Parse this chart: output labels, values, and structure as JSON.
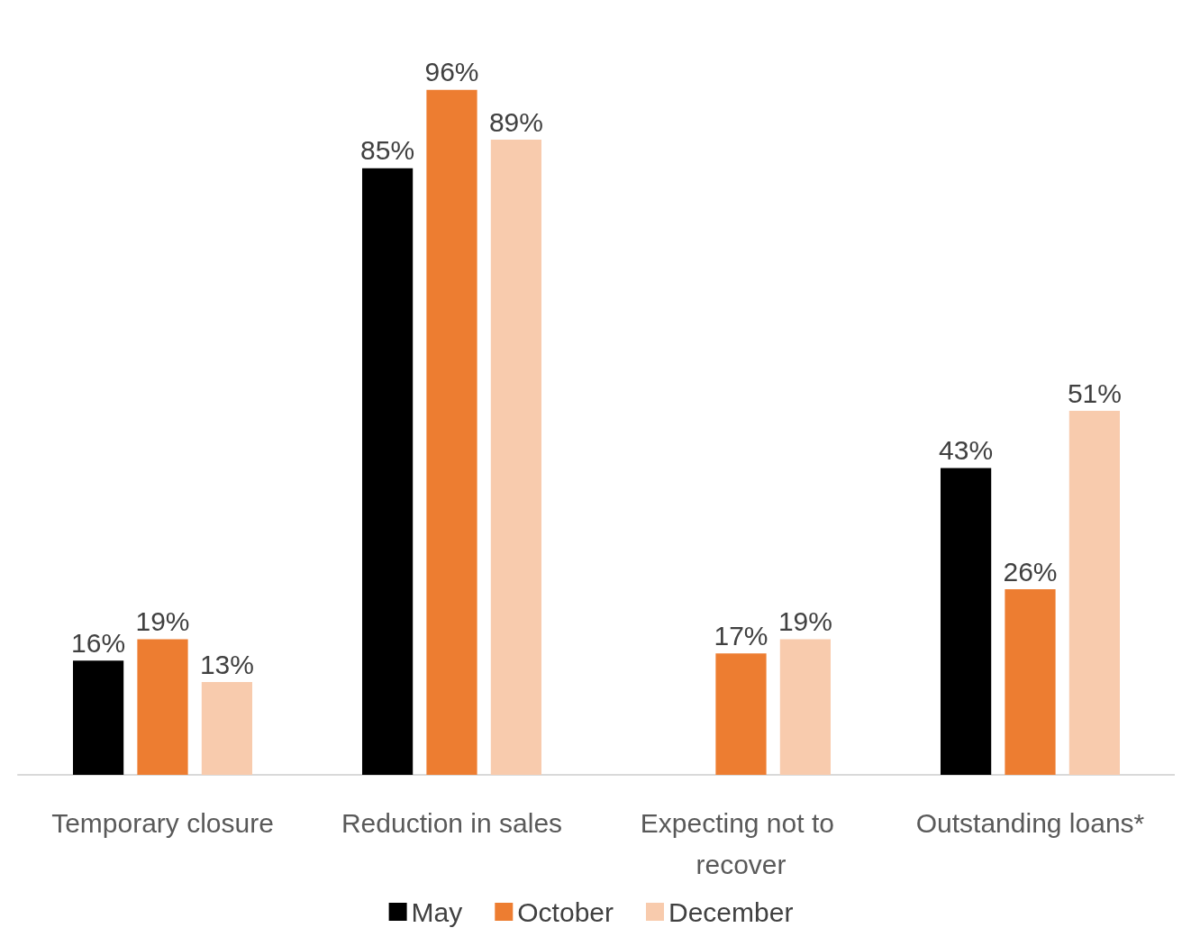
{
  "chart_data": {
    "type": "bar",
    "categories": [
      "Temporary closure",
      "Reduction in sales",
      "Expecting not to recover",
      "Outstanding loans*"
    ],
    "series": [
      {
        "name": "May",
        "color": "#000000",
        "values": [
          16,
          85,
          null,
          43
        ],
        "value_labels": [
          "16%",
          "85%",
          null,
          "43%"
        ]
      },
      {
        "name": "October",
        "color": "#ed7d31",
        "values": [
          19,
          96,
          17,
          26
        ],
        "value_labels": [
          "19%",
          "96%",
          "17%",
          "26%"
        ]
      },
      {
        "name": "December",
        "color": "#f8cbad",
        "values": [
          13,
          89,
          19,
          51
        ],
        "value_labels": [
          "13%",
          "89%",
          "19%",
          "51%"
        ]
      }
    ],
    "legend": "bottom"
  }
}
